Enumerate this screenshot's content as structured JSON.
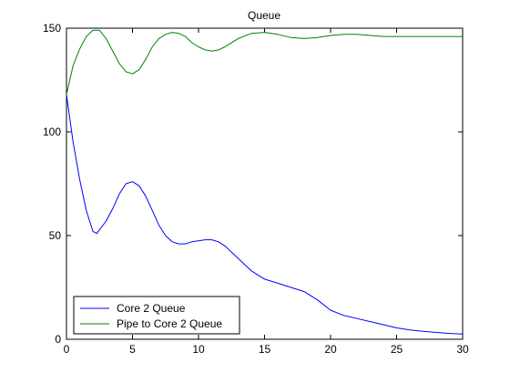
{
  "chart_data": {
    "type": "line",
    "title": "Queue",
    "xlabel": "",
    "ylabel": "",
    "xlim": [
      0,
      30
    ],
    "ylim": [
      0,
      150
    ],
    "x_ticks": [
      0,
      5,
      10,
      15,
      20,
      25,
      30
    ],
    "y_ticks": [
      0,
      50,
      100,
      150
    ],
    "grid": false,
    "legend_position": "bottom-left",
    "series": [
      {
        "name": "Core 2 Queue",
        "color": "#0000ff",
        "x": [
          0,
          0.5,
          1,
          1.5,
          2,
          2.3,
          3,
          3.5,
          4,
          4.5,
          5,
          5.5,
          6,
          6.5,
          7,
          7.5,
          8,
          8.5,
          9,
          9.5,
          10,
          10.5,
          11,
          11.5,
          12,
          13,
          14,
          15,
          16,
          17,
          18,
          19,
          20,
          21,
          22,
          23,
          24,
          25,
          26,
          27,
          28,
          29,
          30
        ],
        "y": [
          118,
          95,
          77,
          62,
          52,
          51,
          57,
          63,
          70,
          75,
          76,
          74,
          69,
          62,
          55,
          50,
          47,
          46,
          46,
          47,
          47.5,
          48,
          48,
          47,
          45,
          39,
          33,
          29,
          27,
          25,
          23,
          19,
          14,
          11.5,
          10,
          8.5,
          7,
          5.5,
          4.5,
          3.8,
          3.3,
          2.8,
          2.5
        ]
      },
      {
        "name": "Pipe to Core 2 Queue",
        "color": "#008000",
        "x": [
          0,
          0.5,
          1,
          1.5,
          2,
          2.5,
          3,
          3.5,
          4,
          4.5,
          5,
          5.5,
          6,
          6.5,
          7,
          7.5,
          8,
          8.5,
          9,
          9.5,
          10,
          10.5,
          11,
          11.5,
          12,
          13,
          14,
          15,
          16,
          17,
          18,
          19,
          20,
          21,
          22,
          23,
          24,
          25,
          26,
          27,
          28,
          29,
          30
        ],
        "y": [
          118,
          132,
          140,
          146,
          149,
          149,
          145,
          139,
          133,
          129,
          128,
          130,
          135,
          141,
          145,
          147,
          148,
          147.5,
          146,
          143,
          141,
          139.5,
          139,
          139.5,
          141,
          145,
          147.5,
          148,
          147,
          145.5,
          145,
          145.5,
          146.5,
          147,
          147,
          146.5,
          146,
          146,
          146,
          146,
          146,
          146,
          146
        ]
      }
    ]
  }
}
